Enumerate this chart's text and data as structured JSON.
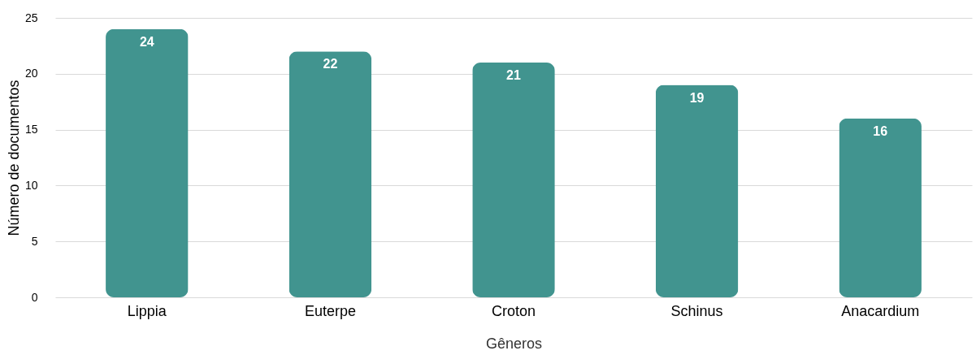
{
  "chart_data": {
    "type": "bar",
    "xlabel": "Gêneros",
    "ylabel": "Número de documentos",
    "categories": [
      "Lippia",
      "Euterpe",
      "Croton",
      "Schinus",
      "Anacardium"
    ],
    "values": [
      24,
      22,
      21,
      19,
      16
    ],
    "color": "#41948f",
    "ylim": [
      0,
      25
    ],
    "yticks": [
      0,
      5,
      10,
      15,
      20,
      25
    ],
    "grid": "y",
    "data_labels": true
  }
}
